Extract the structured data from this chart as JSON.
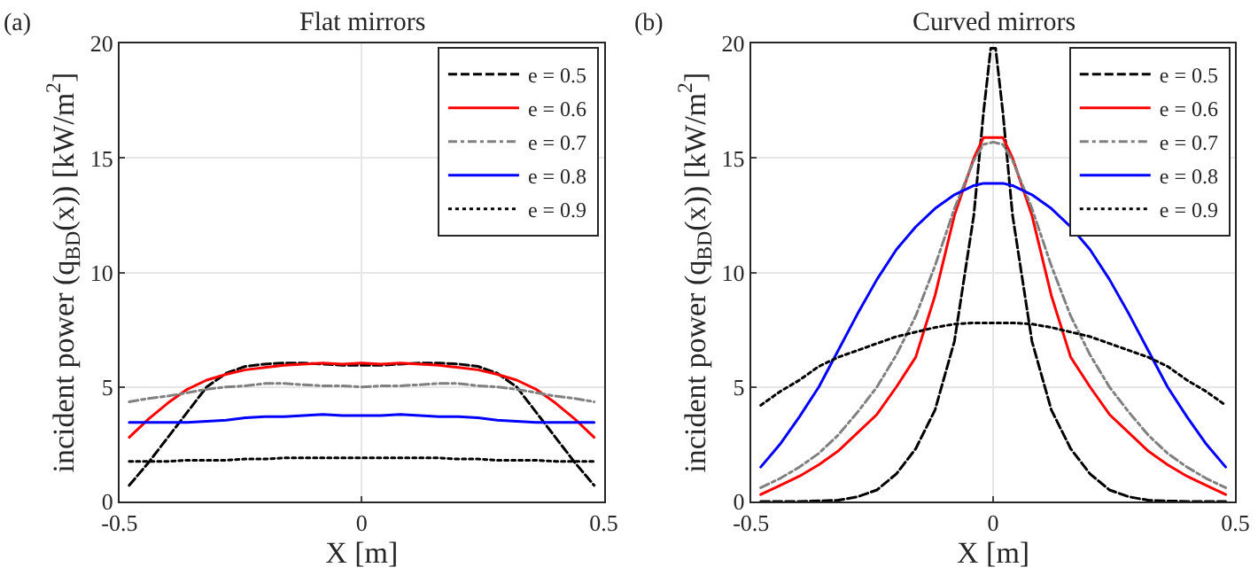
{
  "chart_data": [
    {
      "type": "line",
      "title": "Flat mirrors",
      "annotations": [
        "(a)"
      ],
      "xlabel": "X [m]",
      "ylabel": "incident power (q$_{BD}$(x)) [kW/m$^{2}$]",
      "x": [
        -0.48,
        -0.44,
        -0.4,
        -0.36,
        -0.32,
        -0.28,
        -0.24,
        -0.2,
        -0.16,
        -0.12,
        -0.08,
        -0.04,
        0,
        0.04,
        0.08,
        0.12,
        0.16,
        0.2,
        0.24,
        0.28,
        0.32,
        0.36,
        0.4,
        0.44,
        0.48
      ],
      "xlim": [
        -0.5,
        0.5
      ],
      "xticks": [
        -0.5,
        0,
        0.5
      ],
      "ylim": [
        0,
        20
      ],
      "yticks": [
        0,
        5,
        10,
        15,
        20
      ],
      "grid": true,
      "legend": "top right",
      "series": [
        {
          "name": "e = 0.5",
          "color": "#000000",
          "line_style": "dashed",
          "values": [
            0.7,
            1.7,
            2.8,
            3.9,
            5.0,
            5.6,
            5.9,
            6.0,
            6.05,
            6.05,
            6.0,
            5.95,
            5.95,
            5.95,
            6.0,
            6.05,
            6.05,
            6.0,
            5.9,
            5.6,
            5.0,
            3.9,
            2.8,
            1.7,
            0.7
          ]
        },
        {
          "name": "e = 0.6",
          "color": "#ff0000",
          "line_style": "solid",
          "values": [
            2.8,
            3.6,
            4.3,
            4.9,
            5.3,
            5.55,
            5.75,
            5.85,
            5.95,
            6.0,
            6.05,
            6.0,
            6.05,
            6.0,
            6.05,
            6.0,
            5.95,
            5.85,
            5.75,
            5.55,
            5.3,
            4.9,
            4.3,
            3.6,
            2.8
          ]
        },
        {
          "name": "e = 0.7",
          "color": "#808080",
          "line_style": "dashdot",
          "values": [
            4.35,
            4.5,
            4.6,
            4.75,
            4.9,
            5.0,
            5.05,
            5.15,
            5.15,
            5.1,
            5.05,
            5.05,
            5.0,
            5.05,
            5.05,
            5.1,
            5.15,
            5.15,
            5.05,
            5.0,
            4.9,
            4.75,
            4.6,
            4.5,
            4.35
          ]
        },
        {
          "name": "e = 0.8",
          "color": "#0000ff",
          "line_style": "solid",
          "values": [
            3.45,
            3.45,
            3.45,
            3.45,
            3.5,
            3.55,
            3.65,
            3.7,
            3.7,
            3.75,
            3.8,
            3.75,
            3.75,
            3.75,
            3.8,
            3.75,
            3.7,
            3.7,
            3.65,
            3.55,
            3.5,
            3.45,
            3.45,
            3.45,
            3.45
          ]
        },
        {
          "name": "e = 0.9",
          "color": "#000000",
          "line_style": "dotted",
          "values": [
            1.75,
            1.75,
            1.75,
            1.8,
            1.8,
            1.8,
            1.85,
            1.85,
            1.9,
            1.9,
            1.9,
            1.9,
            1.9,
            1.9,
            1.9,
            1.9,
            1.9,
            1.85,
            1.85,
            1.8,
            1.8,
            1.8,
            1.75,
            1.75,
            1.75
          ]
        }
      ]
    },
    {
      "type": "line",
      "title": "Curved mirrors",
      "annotations": [
        "(b)"
      ],
      "xlabel": "X [m]",
      "ylabel": "incident power (q$_{BD}$(x)) [kW/m$^{2}$]",
      "x": [
        -0.48,
        -0.44,
        -0.4,
        -0.36,
        -0.32,
        -0.28,
        -0.24,
        -0.2,
        -0.16,
        -0.12,
        -0.08,
        -0.04,
        -0.02,
        0,
        0.02,
        0.04,
        0.08,
        0.12,
        0.16,
        0.2,
        0.24,
        0.28,
        0.32,
        0.36,
        0.4,
        0.44,
        0.48
      ],
      "xlim": [
        -0.5,
        0.5
      ],
      "xticks": [
        -0.5,
        0,
        0.5
      ],
      "ylim": [
        0,
        20
      ],
      "yticks": [
        0,
        5,
        10,
        15,
        20
      ],
      "grid": true,
      "legend": "top right",
      "series": [
        {
          "name": "e = 0.5",
          "color": "#000000",
          "line_style": "dashed",
          "x": [
            -0.48,
            -0.44,
            -0.4,
            -0.36,
            -0.32,
            -0.28,
            -0.24,
            -0.2,
            -0.16,
            -0.12,
            -0.08,
            -0.04,
            -0.02,
            -0.005,
            0.005,
            0.02,
            0.04,
            0.08,
            0.12,
            0.16,
            0.2,
            0.24,
            0.28,
            0.32,
            0.36,
            0.4,
            0.44,
            0.48
          ],
          "values": [
            0,
            0,
            0,
            0.02,
            0.05,
            0.2,
            0.5,
            1.2,
            2.3,
            4.0,
            7.0,
            12.5,
            17.0,
            19.8,
            19.8,
            17.0,
            12.5,
            7.0,
            4.0,
            2.3,
            1.2,
            0.5,
            0.2,
            0.05,
            0.02,
            0,
            0,
            0
          ]
        },
        {
          "name": "e = 0.6",
          "color": "#ff0000",
          "line_style": "solid",
          "values": [
            0.3,
            0.7,
            1.1,
            1.6,
            2.2,
            3.0,
            3.8,
            5.0,
            6.3,
            9.0,
            12.5,
            15.0,
            15.9,
            15.9,
            15.9,
            15.0,
            12.5,
            9.0,
            6.3,
            5.0,
            3.8,
            3.0,
            2.2,
            1.6,
            1.1,
            0.7,
            0.3
          ]
        },
        {
          "name": "e = 0.7",
          "color": "#808080",
          "line_style": "dashdot",
          "values": [
            0.6,
            1.0,
            1.5,
            2.1,
            2.9,
            3.9,
            5.0,
            6.4,
            8.1,
            10.3,
            12.8,
            14.9,
            15.6,
            15.7,
            15.6,
            14.9,
            12.8,
            10.3,
            8.1,
            6.4,
            5.0,
            3.9,
            2.9,
            2.1,
            1.5,
            1.0,
            0.6
          ]
        },
        {
          "name": "e = 0.8",
          "color": "#0000ff",
          "line_style": "solid",
          "values": [
            1.5,
            2.5,
            3.7,
            5.0,
            6.6,
            8.2,
            9.7,
            11.0,
            12.0,
            12.8,
            13.4,
            13.8,
            13.9,
            13.9,
            13.9,
            13.8,
            13.4,
            12.8,
            12.0,
            11.0,
            9.7,
            8.2,
            6.6,
            5.0,
            3.7,
            2.5,
            1.5
          ]
        },
        {
          "name": "e = 0.9",
          "color": "#000000",
          "line_style": "dotted",
          "values": [
            4.2,
            4.8,
            5.3,
            5.9,
            6.3,
            6.6,
            6.9,
            7.2,
            7.4,
            7.6,
            7.75,
            7.8,
            7.8,
            7.8,
            7.8,
            7.8,
            7.75,
            7.6,
            7.4,
            7.2,
            6.9,
            6.6,
            6.3,
            5.9,
            5.3,
            4.8,
            4.2
          ]
        }
      ]
    }
  ]
}
